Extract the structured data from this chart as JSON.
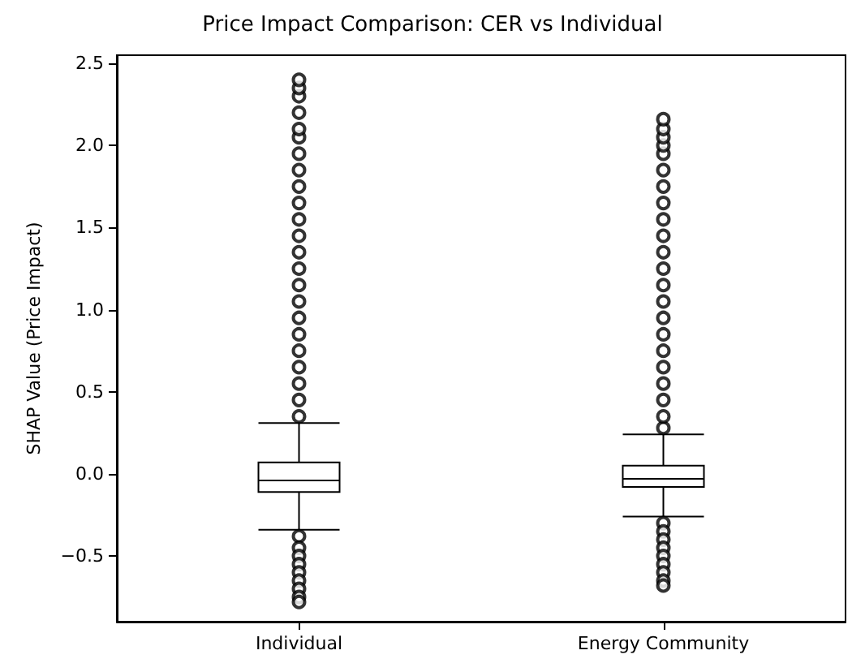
{
  "chart_data": {
    "type": "box",
    "title": "Price Impact Comparison: CER vs Individual",
    "ylabel": "SHAP Value (Price Impact)",
    "categories": [
      "Individual",
      "Energy Community"
    ],
    "boxes": [
      {
        "low": -0.34,
        "q1": -0.11,
        "median": -0.04,
        "q3": 0.07,
        "high": 0.31,
        "outliers": [
          0.35,
          0.45,
          0.55,
          0.65,
          0.75,
          0.85,
          0.95,
          1.05,
          1.15,
          1.25,
          1.35,
          1.45,
          1.55,
          1.65,
          1.75,
          1.85,
          1.95,
          2.05,
          2.1,
          2.2,
          2.3,
          2.35,
          2.4,
          -0.38,
          -0.45,
          -0.5,
          -0.55,
          -0.6,
          -0.65,
          -0.7,
          -0.75,
          -0.78
        ]
      },
      {
        "low": -0.26,
        "q1": -0.08,
        "median": -0.03,
        "q3": 0.05,
        "high": 0.24,
        "outliers": [
          0.28,
          0.35,
          0.45,
          0.55,
          0.65,
          0.75,
          0.85,
          0.95,
          1.05,
          1.15,
          1.25,
          1.35,
          1.45,
          1.55,
          1.65,
          1.75,
          1.85,
          1.95,
          2.0,
          2.05,
          2.1,
          2.16,
          -0.3,
          -0.35,
          -0.4,
          -0.45,
          -0.5,
          -0.55,
          -0.6,
          -0.65,
          -0.68
        ]
      }
    ],
    "color": "#000000",
    "ylim": [
      -0.9,
      2.55
    ],
    "yticks": [
      {
        "value": -0.5,
        "label": "−0.5"
      },
      {
        "value": 0,
        "label": "0.0"
      },
      {
        "value": 0.5,
        "label": "0.5"
      },
      {
        "value": 1,
        "label": "1.0"
      },
      {
        "value": 1.5,
        "label": "1.5"
      },
      {
        "value": 2,
        "label": "2.0"
      },
      {
        "value": 2.5,
        "label": "2.5"
      }
    ],
    "marker": "circle"
  }
}
